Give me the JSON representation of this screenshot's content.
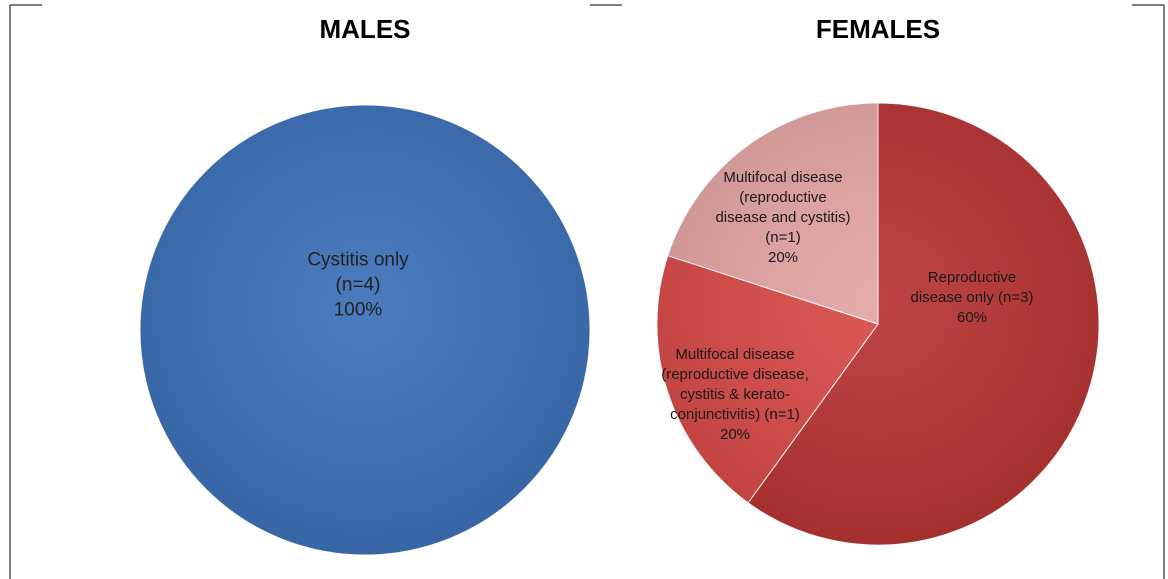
{
  "chart_data": [
    {
      "type": "pie",
      "title": "MALES",
      "categories": [
        "Cystitis only (n=4)"
      ],
      "values": [
        100
      ],
      "value_labels": [
        "100%"
      ],
      "colors": [
        "#3b70b9"
      ]
    },
    {
      "type": "pie",
      "title": "FEMALES",
      "categories": [
        "Reproductive disease only (n=3)",
        "Multifocal disease (reproductive disease, cystitis & kerato-conjunctivitis) (n=1)",
        "Multifocal disease (reproductive disease and cystitis) (n=1)"
      ],
      "values": [
        60,
        20,
        20
      ],
      "value_labels": [
        "60%",
        "20%",
        "20%"
      ],
      "colors": [
        "#b73331",
        "#d84947",
        "#e4a4a3"
      ]
    }
  ]
}
